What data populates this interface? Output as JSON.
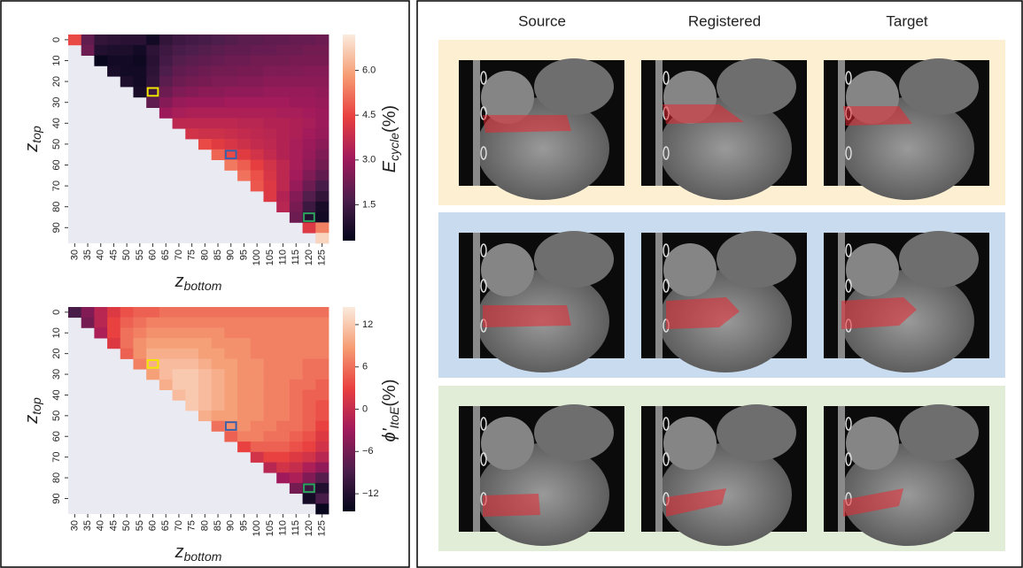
{
  "chart_data": [
    {
      "type": "heatmap",
      "x": [
        30,
        35,
        40,
        45,
        50,
        55,
        60,
        65,
        70,
        75,
        80,
        85,
        90,
        95,
        100,
        105,
        110,
        115,
        120,
        125
      ],
      "y": [
        0,
        5,
        10,
        15,
        20,
        25,
        30,
        35,
        40,
        45,
        50,
        55,
        60,
        65,
        70,
        75,
        80,
        85,
        90,
        95
      ],
      "xticks": [
        30,
        35,
        40,
        45,
        50,
        55,
        60,
        65,
        70,
        75,
        80,
        85,
        90,
        95,
        100,
        105,
        110,
        115,
        120,
        125
      ],
      "yticks": [
        0,
        10,
        20,
        30,
        40,
        50,
        60,
        70,
        80,
        90
      ],
      "x_label": "z",
      "x_label_sub": "bottom",
      "y_label": "z",
      "y_label_sub": "top",
      "colorbar_label": "E",
      "colorbar_label_sub": "cycle",
      "colorbar_label_suffix": "(%)",
      "zlim": [
        0.3,
        7.2
      ],
      "zticks": [
        1.5,
        {
          "value": 3,
          "label": "3.0"
        },
        4.5,
        {
          "value": 6,
          "label": "6.0"
        }
      ],
      "colormap": [
        "#03051a",
        "#4c1d4b",
        "#a11a5b",
        "#e83f3f",
        "#f69c73",
        "#faebdd"
      ],
      "empty_color": "#eaeaf2",
      "highlights": [
        {
          "z_top": 25,
          "z_bottom": 60,
          "color": "#f2e600"
        },
        {
          "z_top": 55,
          "z_bottom": 90,
          "color": "#3b5fa8"
        },
        {
          "z_top": 85,
          "z_bottom": 120,
          "color": "#2ca25f"
        }
      ],
      "values": [
        [
          4.6,
          2.0,
          1.2,
          1.1,
          1.0,
          1.0,
          0.6,
          1.2,
          1.4,
          1.5,
          1.6,
          1.7,
          1.8,
          1.9,
          1.9,
          2.0,
          2.0,
          2.1,
          2.1,
          2.2
        ],
        [
          null,
          2.2,
          0.9,
          0.8,
          0.8,
          0.6,
          1.1,
          1.4,
          1.6,
          1.7,
          1.8,
          1.9,
          2.0,
          2.0,
          2.1,
          2.1,
          2.2,
          2.2,
          2.3,
          2.3
        ],
        [
          null,
          null,
          0.4,
          0.6,
          0.6,
          0.5,
          1.0,
          1.5,
          1.8,
          1.9,
          2.0,
          2.1,
          2.2,
          2.2,
          2.3,
          2.3,
          2.3,
          2.4,
          2.4,
          2.4
        ],
        [
          null,
          null,
          null,
          0.7,
          0.6,
          0.6,
          1.1,
          1.7,
          2.0,
          2.1,
          2.2,
          2.3,
          2.3,
          2.4,
          2.4,
          2.5,
          2.5,
          2.5,
          2.6,
          2.6
        ],
        [
          null,
          null,
          null,
          null,
          0.8,
          0.6,
          1.2,
          1.9,
          2.2,
          2.3,
          2.4,
          2.5,
          2.5,
          2.6,
          2.6,
          2.7,
          2.7,
          2.7,
          2.7,
          2.7
        ],
        [
          null,
          null,
          null,
          null,
          null,
          0.7,
          1.4,
          2.2,
          2.5,
          2.6,
          2.7,
          2.7,
          2.8,
          2.8,
          2.8,
          2.9,
          2.9,
          2.9,
          2.9,
          2.8
        ],
        [
          null,
          null,
          null,
          null,
          null,
          null,
          2.0,
          2.6,
          2.9,
          3.0,
          3.0,
          3.0,
          3.1,
          3.1,
          3.1,
          3.1,
          3.1,
          3.0,
          3.0,
          2.9
        ],
        [
          null,
          null,
          null,
          null,
          null,
          null,
          null,
          3.0,
          3.2,
          3.3,
          3.3,
          3.3,
          3.3,
          3.3,
          3.3,
          3.3,
          3.2,
          3.2,
          3.1,
          3.0
        ],
        [
          null,
          null,
          null,
          null,
          null,
          null,
          null,
          null,
          3.6,
          3.6,
          3.6,
          3.6,
          3.6,
          3.5,
          3.5,
          3.4,
          3.4,
          3.3,
          3.2,
          3.0
        ],
        [
          null,
          null,
          null,
          null,
          null,
          null,
          null,
          null,
          null,
          4.0,
          3.9,
          3.9,
          3.8,
          3.7,
          3.6,
          3.5,
          3.4,
          3.3,
          3.1,
          2.9
        ],
        [
          null,
          null,
          null,
          null,
          null,
          null,
          null,
          null,
          null,
          null,
          4.6,
          4.3,
          4.1,
          3.9,
          3.7,
          3.6,
          3.4,
          3.2,
          3.0,
          2.7
        ],
        [
          null,
          null,
          null,
          null,
          null,
          null,
          null,
          null,
          null,
          null,
          null,
          5.0,
          4.6,
          4.3,
          4.0,
          3.7,
          3.4,
          3.2,
          2.9,
          2.5
        ],
        [
          null,
          null,
          null,
          null,
          null,
          null,
          null,
          null,
          null,
          null,
          null,
          null,
          5.3,
          4.9,
          4.4,
          4.0,
          3.6,
          3.2,
          2.8,
          2.3
        ],
        [
          null,
          null,
          null,
          null,
          null,
          null,
          null,
          null,
          null,
          null,
          null,
          null,
          null,
          5.2,
          4.7,
          4.1,
          3.6,
          3.1,
          2.5,
          2.0
        ],
        [
          null,
          null,
          null,
          null,
          null,
          null,
          null,
          null,
          null,
          null,
          null,
          null,
          null,
          null,
          4.8,
          4.2,
          3.6,
          2.9,
          2.2,
          1.6
        ],
        [
          null,
          null,
          null,
          null,
          null,
          null,
          null,
          null,
          null,
          null,
          null,
          null,
          null,
          null,
          null,
          4.2,
          3.4,
          2.6,
          1.8,
          1.2
        ],
        [
          null,
          null,
          null,
          null,
          null,
          null,
          null,
          null,
          null,
          null,
          null,
          null,
          null,
          null,
          null,
          null,
          3.5,
          2.4,
          1.4,
          0.7
        ],
        [
          null,
          null,
          null,
          null,
          null,
          null,
          null,
          null,
          null,
          null,
          null,
          null,
          null,
          null,
          null,
          null,
          null,
          2.2,
          0.9,
          0.6
        ],
        [
          null,
          null,
          null,
          null,
          null,
          null,
          null,
          null,
          null,
          null,
          null,
          null,
          null,
          null,
          null,
          null,
          null,
          null,
          4.2,
          5.4
        ],
        [
          null,
          null,
          null,
          null,
          null,
          null,
          null,
          null,
          null,
          null,
          null,
          null,
          null,
          null,
          null,
          null,
          null,
          null,
          null,
          6.8
        ]
      ]
    },
    {
      "type": "heatmap",
      "x": [
        30,
        35,
        40,
        45,
        50,
        55,
        60,
        65,
        70,
        75,
        80,
        85,
        90,
        95,
        100,
        105,
        110,
        115,
        120,
        125
      ],
      "y": [
        0,
        5,
        10,
        15,
        20,
        25,
        30,
        35,
        40,
        45,
        50,
        55,
        60,
        65,
        70,
        75,
        80,
        85,
        90,
        95
      ],
      "xticks": [
        30,
        35,
        40,
        45,
        50,
        55,
        60,
        65,
        70,
        75,
        80,
        85,
        90,
        95,
        100,
        105,
        110,
        115,
        120,
        125
      ],
      "yticks": [
        0,
        10,
        20,
        30,
        40,
        50,
        60,
        70,
        80,
        90
      ],
      "x_label": "z",
      "x_label_sub": "bottom",
      "y_label": "z",
      "y_label_sub": "top",
      "colorbar_label": "ϕ'",
      "colorbar_label_sub": "ItoE",
      "colorbar_label_suffix": "(%)",
      "zlim": [
        -14.5,
        14.5
      ],
      "zticks": [
        {
          "value": -12,
          "label": "−12"
        },
        {
          "value": -6,
          "label": "−6"
        },
        0,
        6,
        12
      ],
      "colormap": [
        "#03051a",
        "#4c1d4b",
        "#a11a5b",
        "#e83f3f",
        "#f69c73",
        "#faebdd"
      ],
      "empty_color": "#eaeaf2",
      "highlights": [
        {
          "z_top": 25,
          "z_bottom": 60,
          "color": "#f2e600"
        },
        {
          "z_top": 55,
          "z_bottom": 90,
          "color": "#3b5fa8"
        },
        {
          "z_top": 85,
          "z_bottom": 120,
          "color": "#2ca25f"
        }
      ],
      "values": [
        [
          -9,
          -5,
          -1,
          2,
          4,
          5,
          5,
          6,
          6,
          6,
          6,
          6,
          6,
          6,
          6,
          6,
          6,
          6,
          6,
          6
        ],
        [
          null,
          -6,
          -1,
          3,
          5,
          6,
          7,
          7,
          7,
          7,
          7,
          7,
          7,
          7,
          7,
          7,
          7,
          7,
          7,
          7
        ],
        [
          null,
          null,
          -2,
          3,
          6,
          7,
          8,
          8,
          8,
          8,
          8,
          8,
          7,
          7,
          7,
          7,
          7,
          7,
          7,
          7
        ],
        [
          null,
          null,
          null,
          2,
          6,
          8,
          9,
          9,
          9,
          9,
          9,
          8,
          8,
          8,
          7,
          7,
          7,
          7,
          7,
          7
        ],
        [
          null,
          null,
          null,
          null,
          5,
          8,
          10,
          10,
          10,
          10,
          9,
          9,
          8,
          8,
          7,
          7,
          7,
          7,
          7,
          7
        ],
        [
          null,
          null,
          null,
          null,
          null,
          7,
          10,
          11,
          11,
          11,
          10,
          9,
          9,
          8,
          8,
          7,
          7,
          7,
          6,
          6
        ],
        [
          null,
          null,
          null,
          null,
          null,
          null,
          9,
          11,
          12,
          12,
          11,
          10,
          9,
          8,
          8,
          7,
          7,
          7,
          6,
          6
        ],
        [
          null,
          null,
          null,
          null,
          null,
          null,
          null,
          10,
          12,
          12,
          11,
          10,
          9,
          8,
          8,
          7,
          7,
          6,
          6,
          5
        ],
        [
          null,
          null,
          null,
          null,
          null,
          null,
          null,
          null,
          11,
          12,
          11,
          10,
          9,
          8,
          8,
          7,
          7,
          6,
          5,
          5
        ],
        [
          null,
          null,
          null,
          null,
          null,
          null,
          null,
          null,
          null,
          12,
          11,
          10,
          9,
          8,
          8,
          7,
          7,
          6,
          5,
          4
        ],
        [
          null,
          null,
          null,
          null,
          null,
          null,
          null,
          null,
          null,
          null,
          10,
          9,
          9,
          8,
          8,
          7,
          7,
          6,
          5,
          4
        ],
        [
          null,
          null,
          null,
          null,
          null,
          null,
          null,
          null,
          null,
          null,
          null,
          6,
          8,
          8,
          7,
          7,
          6,
          6,
          5,
          3
        ],
        [
          null,
          null,
          null,
          null,
          null,
          null,
          null,
          null,
          null,
          null,
          null,
          null,
          5,
          7,
          7,
          6,
          6,
          5,
          4,
          2
        ],
        [
          null,
          null,
          null,
          null,
          null,
          null,
          null,
          null,
          null,
          null,
          null,
          null,
          null,
          3,
          5,
          5,
          5,
          4,
          3,
          1
        ],
        [
          null,
          null,
          null,
          null,
          null,
          null,
          null,
          null,
          null,
          null,
          null,
          null,
          null,
          null,
          1,
          3,
          3,
          2,
          1,
          -1
        ],
        [
          null,
          null,
          null,
          null,
          null,
          null,
          null,
          null,
          null,
          null,
          null,
          null,
          null,
          null,
          null,
          -1,
          1,
          0,
          -2,
          -4
        ],
        [
          null,
          null,
          null,
          null,
          null,
          null,
          null,
          null,
          null,
          null,
          null,
          null,
          null,
          null,
          null,
          null,
          -3,
          -2,
          -5,
          -8
        ],
        [
          null,
          null,
          null,
          null,
          null,
          null,
          null,
          null,
          null,
          null,
          null,
          null,
          null,
          null,
          null,
          null,
          null,
          -6,
          -10,
          -12
        ],
        [
          null,
          null,
          null,
          null,
          null,
          null,
          null,
          null,
          null,
          null,
          null,
          null,
          null,
          null,
          null,
          null,
          null,
          null,
          -13,
          -9
        ],
        [
          null,
          null,
          null,
          null,
          null,
          null,
          null,
          null,
          null,
          null,
          null,
          null,
          null,
          null,
          null,
          null,
          null,
          null,
          null,
          -14
        ]
      ]
    }
  ],
  "panel": {
    "columns": [
      "Source",
      "Registered",
      "Target"
    ],
    "row_colors": [
      "#fdf0d2",
      "#c9dcef",
      "#e2edd7"
    ]
  }
}
